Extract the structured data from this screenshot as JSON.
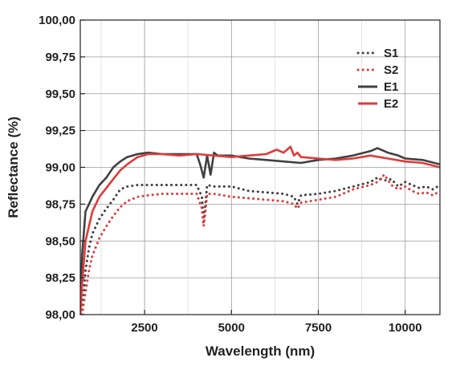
{
  "chart_data": {
    "type": "line",
    "xlabel": "Wavelength (nm)",
    "ylabel": "Reflectance (%)",
    "xlim": [
      650,
      11000
    ],
    "ylim": [
      98.0,
      100.0
    ],
    "xticks": [
      2500,
      5000,
      7500,
      10000
    ],
    "xtick_labels": [
      "2500",
      "5000",
      "7500",
      "10000"
    ],
    "yticks": [
      98.0,
      98.25,
      98.5,
      98.75,
      99.0,
      99.25,
      99.5,
      99.75,
      100.0
    ],
    "ytick_labels": [
      "98,00",
      "98,25",
      "98,50",
      "98,75",
      "99,00",
      "99,25",
      "99,50",
      "99,75",
      "100,00"
    ],
    "grid": true,
    "legend_position": "top-right",
    "series": [
      {
        "name": "S1",
        "color": "#404040",
        "style": "dotted",
        "x": [
          700,
          800,
          900,
          1000,
          1200,
          1400,
          1600,
          1800,
          2000,
          2300,
          2600,
          3000,
          3500,
          4000,
          4150,
          4200,
          4250,
          4300,
          4500,
          5000,
          5500,
          6000,
          6500,
          6800,
          6900,
          7000,
          7500,
          8000,
          8500,
          9000,
          9200,
          9400,
          9600,
          9800,
          10000,
          10200,
          10400,
          10600,
          10800,
          11000
        ],
        "y": [
          98.0,
          98.3,
          98.45,
          98.55,
          98.65,
          98.72,
          98.78,
          98.85,
          98.87,
          98.88,
          98.88,
          98.88,
          98.88,
          98.88,
          98.8,
          98.63,
          98.75,
          98.88,
          98.87,
          98.87,
          98.84,
          98.83,
          98.82,
          98.8,
          98.75,
          98.81,
          98.82,
          98.84,
          98.87,
          98.9,
          98.93,
          98.91,
          98.92,
          98.87,
          98.9,
          98.88,
          98.86,
          98.87,
          98.85,
          98.88
        ]
      },
      {
        "name": "S2",
        "color": "#e03a3a",
        "style": "dotted",
        "x": [
          700,
          800,
          900,
          1000,
          1200,
          1400,
          1600,
          1800,
          2000,
          2300,
          2600,
          3000,
          3500,
          4000,
          4150,
          4200,
          4250,
          4300,
          4500,
          5000,
          5500,
          6000,
          6500,
          6800,
          6900,
          7000,
          7500,
          8000,
          8500,
          9000,
          9200,
          9400,
          9600,
          9800,
          10000,
          10200,
          10400,
          10600,
          10800,
          11000
        ],
        "y": [
          98.0,
          98.15,
          98.3,
          98.4,
          98.52,
          98.6,
          98.67,
          98.73,
          98.77,
          98.8,
          98.81,
          98.82,
          98.82,
          98.82,
          98.72,
          98.6,
          98.7,
          98.82,
          98.82,
          98.8,
          98.79,
          98.78,
          98.77,
          98.75,
          98.72,
          98.76,
          98.78,
          98.8,
          98.85,
          98.88,
          98.9,
          98.95,
          98.88,
          98.85,
          98.87,
          98.84,
          98.82,
          98.83,
          98.81,
          98.84
        ]
      },
      {
        "name": "E1",
        "color": "#404040",
        "style": "solid",
        "x": [
          650,
          700,
          800,
          900,
          1000,
          1200,
          1400,
          1600,
          1800,
          2000,
          2300,
          2600,
          3000,
          3500,
          4000,
          4100,
          4200,
          4300,
          4400,
          4500,
          4600,
          5000,
          5500,
          6000,
          6500,
          7000,
          7500,
          8000,
          8500,
          9000,
          9200,
          9500,
          9800,
          10000,
          10500,
          11000
        ],
        "y": [
          98.0,
          98.4,
          98.7,
          98.75,
          98.8,
          98.88,
          98.93,
          99.0,
          99.04,
          99.07,
          99.09,
          99.1,
          99.09,
          99.09,
          99.09,
          99.02,
          98.93,
          99.08,
          98.95,
          99.1,
          99.08,
          99.08,
          99.06,
          99.05,
          99.04,
          99.03,
          99.05,
          99.06,
          99.08,
          99.11,
          99.13,
          99.1,
          99.08,
          99.06,
          99.05,
          99.02
        ]
      },
      {
        "name": "E2",
        "color": "#e03a3a",
        "style": "solid",
        "x": [
          650,
          700,
          800,
          900,
          1000,
          1200,
          1400,
          1600,
          1800,
          2000,
          2300,
          2600,
          3000,
          3500,
          4000,
          4500,
          5000,
          5500,
          6000,
          6300,
          6500,
          6700,
          6800,
          6900,
          7000,
          7500,
          8000,
          8500,
          9000,
          9500,
          10000,
          10500,
          11000
        ],
        "y": [
          98.0,
          98.2,
          98.5,
          98.6,
          98.7,
          98.8,
          98.86,
          98.92,
          98.98,
          99.02,
          99.07,
          99.09,
          99.09,
          99.08,
          99.09,
          99.08,
          99.07,
          99.08,
          99.09,
          99.12,
          99.1,
          99.14,
          99.08,
          99.1,
          99.07,
          99.06,
          99.05,
          99.06,
          99.08,
          99.06,
          99.04,
          99.03,
          99.0
        ]
      }
    ]
  }
}
